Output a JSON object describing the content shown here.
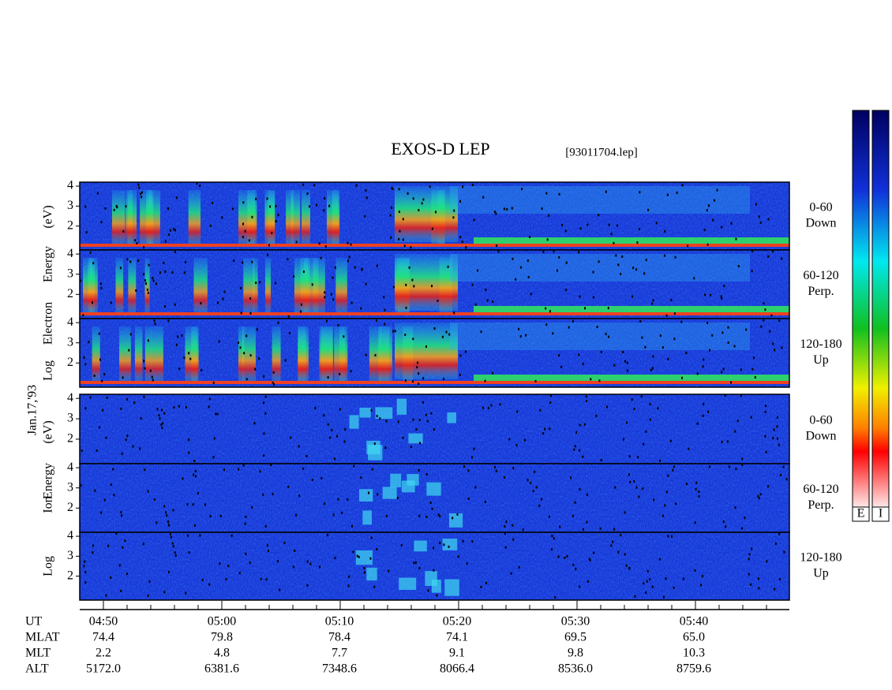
{
  "title": "EXOS-D LEP",
  "file": "[93011704.lep]",
  "date": "Jan.17,'93",
  "electron_axis": [
    "Log",
    "Electron",
    "Energy",
    "(eV)"
  ],
  "ion_axis": [
    "Log",
    "Ion",
    "Energy",
    "(eV)"
  ],
  "ylim": [
    0.8,
    4.2
  ],
  "yticks": [
    2,
    3,
    4
  ],
  "panels": [
    {
      "group": "electron",
      "pitch": "0-60",
      "direction": "Down"
    },
    {
      "group": "electron",
      "pitch": "60-120",
      "direction": "Perp."
    },
    {
      "group": "electron",
      "pitch": "120-180",
      "direction": "Up"
    },
    {
      "group": "ion",
      "pitch": "0-60",
      "direction": "Down"
    },
    {
      "group": "ion",
      "pitch": "60-120",
      "direction": "Perp."
    },
    {
      "group": "ion",
      "pitch": "120-180",
      "direction": "Up"
    }
  ],
  "time_rows": [
    {
      "label": "UT",
      "values": [
        "04:50",
        "05:00",
        "05:10",
        "05:20",
        "05:30",
        "05:40"
      ]
    },
    {
      "label": "MLAT",
      "values": [
        "74.4",
        "79.8",
        "78.4",
        "74.1",
        "69.5",
        "65.0"
      ]
    },
    {
      "label": "MLT",
      "values": [
        "2.2",
        "4.8",
        "7.7",
        "9.1",
        "9.8",
        "10.3"
      ]
    },
    {
      "label": "ALT",
      "values": [
        "5172.0",
        "6381.6",
        "7348.6",
        "8066.4",
        "8536.0",
        "8759.6"
      ]
    }
  ],
  "colorbar": [
    "E",
    "I"
  ]
}
